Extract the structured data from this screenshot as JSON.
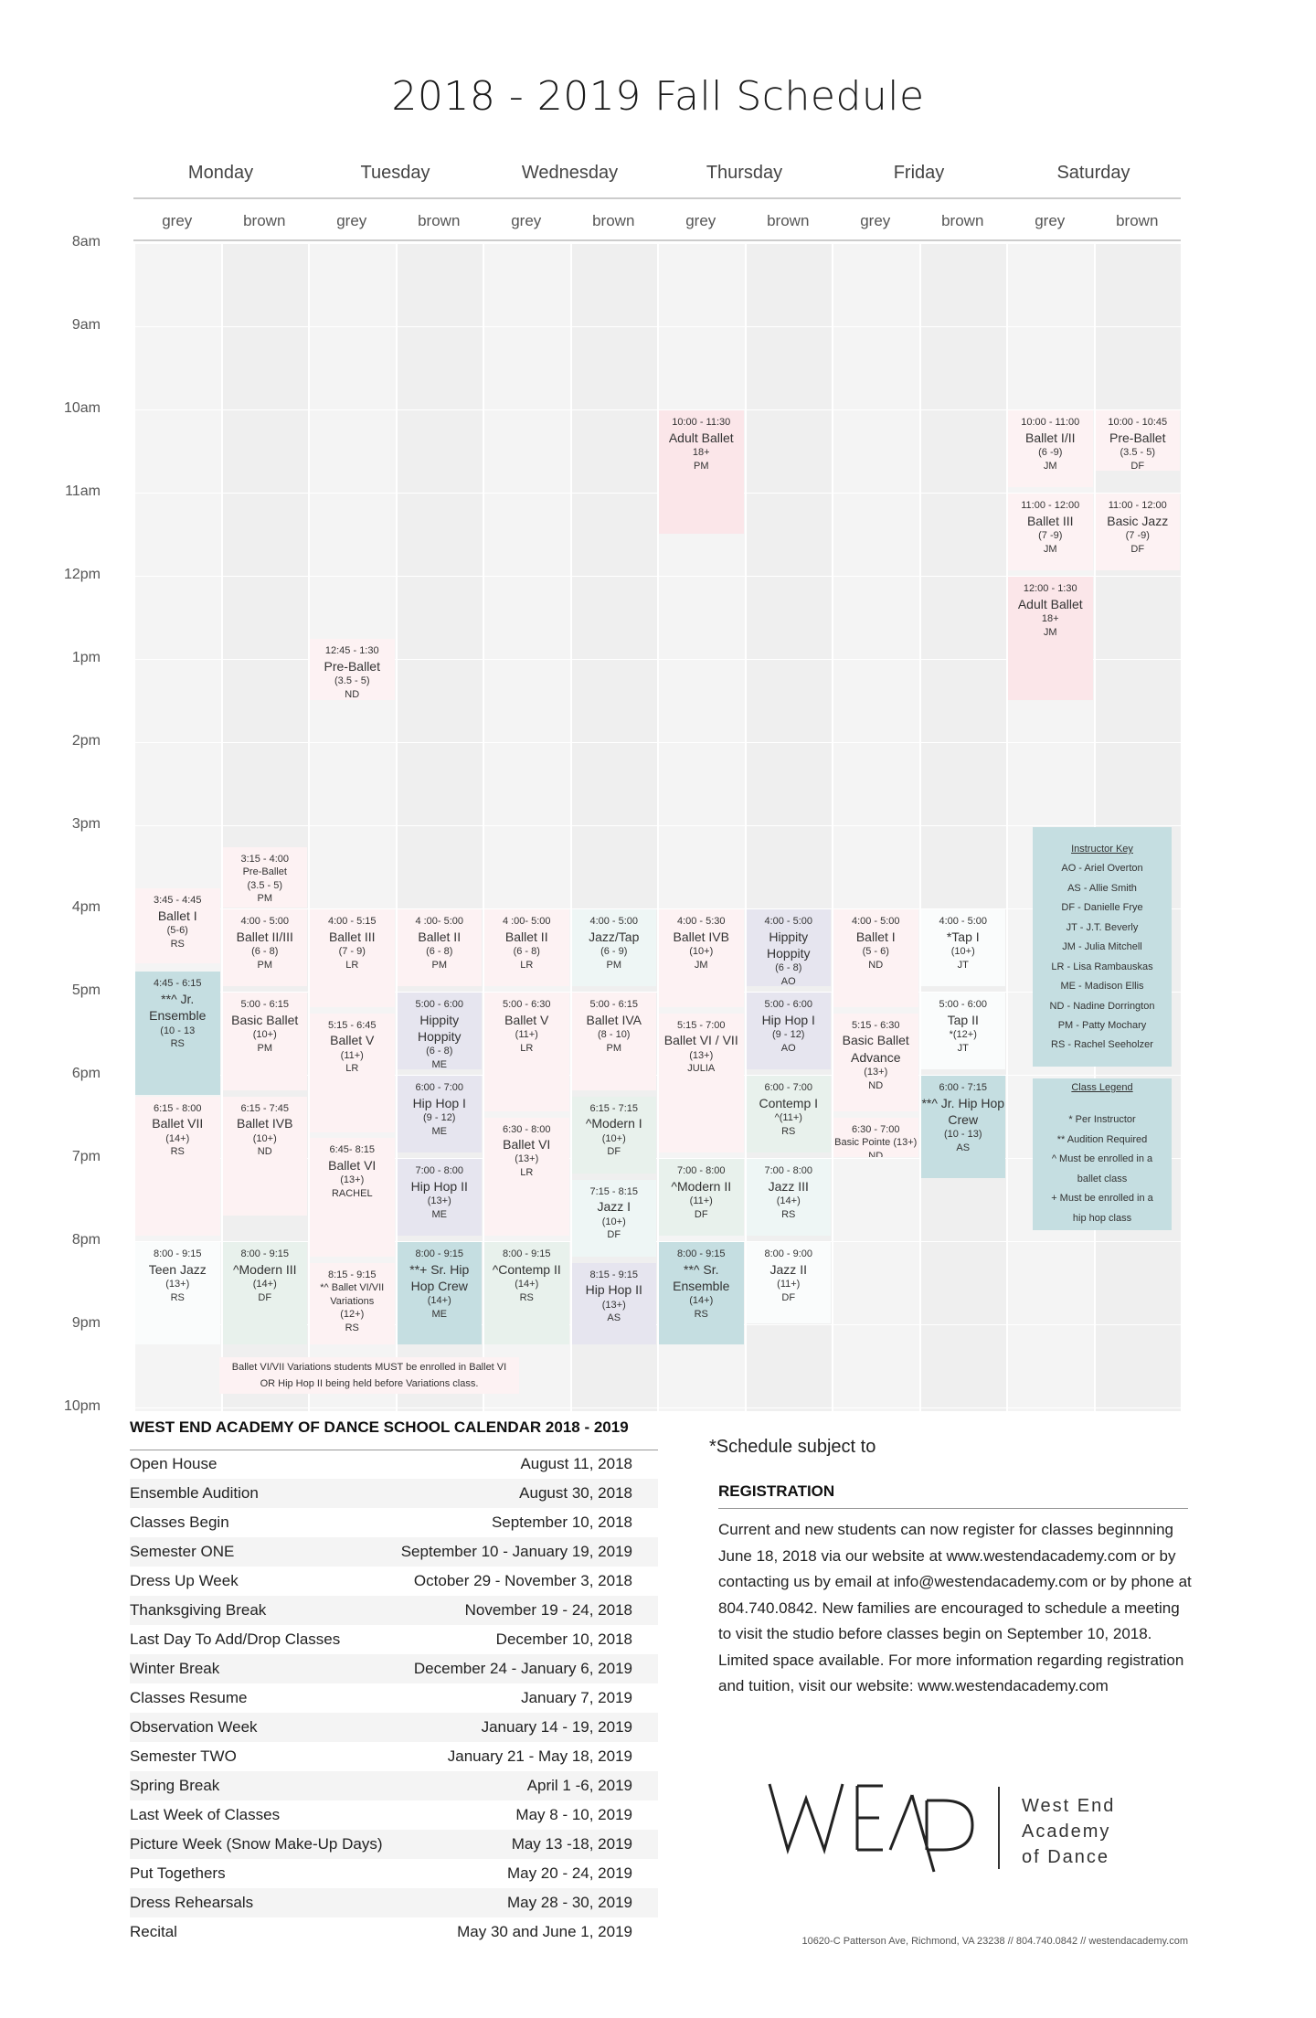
{
  "title": "2018 - 2019 Fall Schedule",
  "days": [
    "Monday",
    "Tuesday",
    "Wednesday",
    "Thursday",
    "Friday",
    "Saturday"
  ],
  "subcols": [
    "grey",
    "brown",
    "grey",
    "brown",
    "grey",
    "brown",
    "grey",
    "brown",
    "grey",
    "brown",
    "grey",
    "brown"
  ],
  "times": [
    "8am",
    "9am",
    "10am",
    "11am",
    "12pm",
    "1pm",
    "2pm",
    "3pm",
    "4pm",
    "5pm",
    "6pm",
    "7pm",
    "8pm",
    "9pm",
    "10pm"
  ],
  "classes": [
    {
      "col": 0,
      "start": 15.75,
      "end": 16.67,
      "color": "lpink",
      "time": "3:45 - 4:45",
      "name": "Ballet I",
      "age": "(5-6)",
      "inst": "RS"
    },
    {
      "col": 0,
      "start": 16.75,
      "end": 18.25,
      "color": "teal",
      "time": "4:45 - 6:15",
      "name": "**^ Jr. Ensemble",
      "age": "(10 - 13",
      "inst": "RS"
    },
    {
      "col": 0,
      "start": 18.25,
      "end": 19.95,
      "color": "lpink",
      "time": "6:15 - 8:00",
      "name": "Ballet VII",
      "age": "(14+)",
      "inst": "RS"
    },
    {
      "col": 0,
      "start": 20.0,
      "end": 21.25,
      "color": "white",
      "time": "8:00 - 9:15",
      "name": "Teen Jazz",
      "age": "(13+)",
      "inst": "RS"
    },
    {
      "col": 1,
      "start": 15.25,
      "end": 16.0,
      "color": "lpink",
      "time": "3:15 - 4:00",
      "name": "Pre-Ballet",
      "age": "(3.5 - 5)",
      "inst": "PM",
      "small": true
    },
    {
      "col": 1,
      "start": 16.0,
      "end": 16.95,
      "color": "lpink",
      "time": "4:00 - 5:00",
      "name": "Ballet II/III",
      "age": "(6 - 8)",
      "inst": "PM"
    },
    {
      "col": 1,
      "start": 17.0,
      "end": 18.2,
      "color": "lpink",
      "time": "5:00 - 6:15",
      "name": "Basic Ballet",
      "age": "(10+)",
      "inst": "PM"
    },
    {
      "col": 1,
      "start": 18.25,
      "end": 19.7,
      "color": "lpink",
      "time": "6:15 - 7:45",
      "name": "Ballet IVB",
      "age": "(10+)",
      "inst": "ND"
    },
    {
      "col": 1,
      "start": 20.0,
      "end": 21.25,
      "color": "mint",
      "time": "8:00 - 9:15",
      "name": "^Modern III",
      "age": "(14+)",
      "inst": "DF"
    },
    {
      "col": 2,
      "start": 12.75,
      "end": 13.5,
      "color": "lpink",
      "time": "12:45 - 1:30",
      "name": "Pre-Ballet",
      "age": "(3.5 - 5)",
      "inst": "ND"
    },
    {
      "col": 2,
      "start": 16.0,
      "end": 17.2,
      "color": "lpink",
      "time": "4:00 - 5:15",
      "name": "Ballet III",
      "age": "(7 - 9)",
      "inst": "LR"
    },
    {
      "col": 2,
      "start": 17.25,
      "end": 18.7,
      "color": "lpink",
      "time": "5:15 - 6:45",
      "name": "Ballet V",
      "age": "(11+)",
      "inst": "LR"
    },
    {
      "col": 2,
      "start": 18.75,
      "end": 20.2,
      "color": "lpink",
      "time": "6:45- 8:15",
      "name": "Ballet VI",
      "age": "(13+)",
      "inst": "RACHEL"
    },
    {
      "col": 2,
      "start": 20.25,
      "end": 21.25,
      "color": "lpink",
      "time": "8:15 - 9:15",
      "name": "*^ Ballet VI/VII Variations",
      "age": "(12+)",
      "inst": "RS",
      "small": true
    },
    {
      "col": 3,
      "start": 16.0,
      "end": 16.95,
      "color": "lpink",
      "time": "4 :00- 5:00",
      "name": "Ballet II",
      "age": "(6 - 8)",
      "inst": "PM"
    },
    {
      "col": 3,
      "start": 17.0,
      "end": 17.95,
      "color": "lav",
      "time": "5:00 - 6:00",
      "name": "Hippity Hoppity",
      "age": "(6 - 8)",
      "inst": "ME"
    },
    {
      "col": 3,
      "start": 18.0,
      "end": 18.95,
      "color": "lav",
      "time": "6:00 - 7:00",
      "name": "Hip Hop I",
      "age": "(9 - 12)",
      "inst": "ME"
    },
    {
      "col": 3,
      "start": 19.0,
      "end": 19.95,
      "color": "lav",
      "time": "7:00 - 8:00",
      "name": "Hip Hop II",
      "age": "(13+)",
      "inst": "ME"
    },
    {
      "col": 3,
      "start": 20.0,
      "end": 21.25,
      "color": "teal",
      "time": "8:00 - 9:15",
      "name": "**+ Sr. Hip Hop Crew",
      "age": "(14+)",
      "inst": "ME"
    },
    {
      "col": 4,
      "start": 16.0,
      "end": 16.95,
      "color": "lpink",
      "time": "4 :00- 5:00",
      "name": "Ballet II",
      "age": "(6 - 8)",
      "inst": "LR"
    },
    {
      "col": 4,
      "start": 17.0,
      "end": 18.45,
      "color": "lpink",
      "time": "5:00 - 6:30",
      "name": "Ballet V",
      "age": "(11+)",
      "inst": "LR"
    },
    {
      "col": 4,
      "start": 18.5,
      "end": 19.95,
      "color": "lpink",
      "time": "6:30 - 8:00",
      "name": "Ballet VI",
      "age": "(13+)",
      "inst": "LR"
    },
    {
      "col": 4,
      "start": 20.0,
      "end": 21.25,
      "color": "mint",
      "time": "8:00 - 9:15",
      "name": "^Contemp II",
      "age": "(14+)",
      "inst": "RS"
    },
    {
      "col": 5,
      "start": 16.0,
      "end": 16.95,
      "color": "lmint",
      "time": "4:00 - 5:00",
      "name": "Jazz/Tap",
      "age": "(6 - 9)",
      "inst": "PM"
    },
    {
      "col": 5,
      "start": 17.0,
      "end": 18.2,
      "color": "lpink",
      "time": "5:00 - 6:15",
      "name": "Ballet IVA",
      "age": "(8 - 10)",
      "inst": "PM"
    },
    {
      "col": 5,
      "start": 18.25,
      "end": 19.2,
      "color": "mint",
      "time": "6:15 - 7:15",
      "name": "^Modern I",
      "age": "(10+)",
      "inst": "DF"
    },
    {
      "col": 5,
      "start": 19.25,
      "end": 20.2,
      "color": "lmint",
      "time": "7:15 - 8:15",
      "name": "Jazz I",
      "age": "(10+)",
      "inst": "DF"
    },
    {
      "col": 5,
      "start": 20.25,
      "end": 21.25,
      "color": "lav",
      "time": "8:15 - 9:15",
      "name": "Hip Hop II",
      "age": "(13+)",
      "inst": "AS"
    },
    {
      "col": 6,
      "start": 10.0,
      "end": 11.5,
      "color": "pink",
      "time": "10:00 - 11:30",
      "name": "Adult Ballet",
      "age": "18+",
      "inst": "PM"
    },
    {
      "col": 6,
      "start": 16.0,
      "end": 17.2,
      "color": "lpink",
      "time": "4:00 - 5:30",
      "name": "Ballet IVB",
      "age": "(10+)",
      "inst": "JM"
    },
    {
      "col": 6,
      "start": 17.25,
      "end": 18.95,
      "color": "lpink",
      "time": "5:15 - 7:00",
      "name": "Ballet VI / VII",
      "age": "(13+)",
      "inst": "JULIA"
    },
    {
      "col": 6,
      "start": 19.0,
      "end": 19.95,
      "color": "mint",
      "time": "7:00 - 8:00",
      "name": "^Modern II",
      "age": "(11+)",
      "inst": "DF"
    },
    {
      "col": 6,
      "start": 20.0,
      "end": 21.25,
      "color": "teal",
      "time": "8:00 - 9:15",
      "name": "**^ Sr. Ensemble",
      "age": "(14+)",
      "inst": "RS"
    },
    {
      "col": 7,
      "start": 16.0,
      "end": 16.95,
      "color": "lav",
      "time": "4:00 - 5:00",
      "name": "Hippity Hoppity",
      "age": "(6 - 8)",
      "inst": "AO"
    },
    {
      "col": 7,
      "start": 17.0,
      "end": 17.95,
      "color": "lav",
      "time": "5:00 - 6:00",
      "name": "Hip Hop I",
      "age": "(9 - 12)",
      "inst": "AO"
    },
    {
      "col": 7,
      "start": 18.0,
      "end": 18.95,
      "color": "mint",
      "time": "6:00 - 7:00",
      "name": "Contemp I",
      "age": "^(11+)",
      "inst": "RS"
    },
    {
      "col": 7,
      "start": 19.0,
      "end": 19.95,
      "color": "lmint",
      "time": "7:00 - 8:00",
      "name": "Jazz III",
      "age": "(14+)",
      "inst": "RS"
    },
    {
      "col": 7,
      "start": 20.0,
      "end": 21.0,
      "color": "white",
      "time": "8:00 - 9:00",
      "name": "Jazz II",
      "age": "(11+)",
      "inst": "DF"
    },
    {
      "col": 8,
      "start": 16.0,
      "end": 17.2,
      "color": "lpink",
      "time": "4:00 - 5:00",
      "name": "Ballet I",
      "age": "(5 - 6)",
      "inst": "ND"
    },
    {
      "col": 8,
      "start": 17.25,
      "end": 18.45,
      "color": "lpink",
      "time": "5:15 - 6:30",
      "name": "Basic Ballet Advance",
      "age": "(13+)",
      "inst": "ND"
    },
    {
      "col": 8,
      "start": 18.5,
      "end": 19.0,
      "color": "lpink",
      "time": "6:30 - 7:00",
      "name": "Basic Pointe (13+)",
      "age": "",
      "inst": "ND",
      "small": true
    },
    {
      "col": 9,
      "start": 16.0,
      "end": 16.95,
      "color": "white",
      "time": "4:00 - 5:00",
      "name": "*Tap I",
      "age": "(10+)",
      "inst": "JT"
    },
    {
      "col": 9,
      "start": 17.0,
      "end": 17.95,
      "color": "white",
      "time": "5:00 - 6:00",
      "name": "Tap II",
      "age": "*(12+)",
      "inst": "JT"
    },
    {
      "col": 9,
      "start": 18.0,
      "end": 19.25,
      "color": "teal",
      "time": "6:00 - 7:15",
      "name": "**^ Jr. Hip Hop Crew",
      "age": "(10 - 13)",
      "inst": "AS"
    },
    {
      "col": 10,
      "start": 10.0,
      "end": 10.95,
      "color": "lpink",
      "time": "10:00 - 11:00",
      "name": "Ballet I/II",
      "age": "(6 -9)",
      "inst": "JM"
    },
    {
      "col": 10,
      "start": 11.0,
      "end": 11.95,
      "color": "lpink",
      "time": "11:00 - 12:00",
      "name": "Ballet III",
      "age": "(7 -9)",
      "inst": "JM"
    },
    {
      "col": 10,
      "start": 12.0,
      "end": 13.5,
      "color": "pink",
      "time": "12:00 - 1:30",
      "name": "Adult Ballet",
      "age": "18+",
      "inst": "JM"
    },
    {
      "col": 11,
      "start": 10.0,
      "end": 10.75,
      "color": "lpink",
      "time": "10:00 - 10:45",
      "name": "Pre-Ballet",
      "age": "(3.5 - 5)",
      "inst": "DF"
    },
    {
      "col": 11,
      "start": 11.0,
      "end": 11.95,
      "color": "lpink",
      "time": "11:00 - 12:00",
      "name": "Basic Jazz",
      "age": "(7 -9)",
      "inst": "DF"
    }
  ],
  "instructor_key": {
    "title": "Instructor Key",
    "items": [
      "AO - Ariel Overton",
      "AS - Allie Smith",
      "DF - Danielle Frye",
      "JT - J.T. Beverly",
      "JM - Julia Mitchell",
      "LR - Lisa Rambauskas",
      "ME - Madison Ellis",
      "ND - Nadine Dorrington",
      "PM - Patty Mochary",
      "RS - Rachel Seeholzer"
    ]
  },
  "class_legend": {
    "title": "Class Legend",
    "items": [
      "* Per Instructor",
      "** Audition Required",
      "^ Must be enrolled in a",
      "ballet class",
      "+ Must be enrolled in a",
      "hip hop class"
    ]
  },
  "variations_note": [
    "Ballet VI/VII Variations students MUST be enrolled in Ballet VI",
    "OR Hip Hop II being held before Variations class."
  ],
  "calendar": {
    "title": "WEST END ACADEMY OF DANCE SCHOOL CALENDAR 2018 - 2019",
    "rows": [
      {
        "event": "Open House",
        "date": "August 11, 2018"
      },
      {
        "event": "Ensemble Audition",
        "date": "August 30, 2018"
      },
      {
        "event": "Classes Begin",
        "date": "September 10, 2018"
      },
      {
        "event": "Semester ONE",
        "date": "September 10 - January 19, 2019"
      },
      {
        "event": "Dress Up Week",
        "date": "October 29 - November 3, 2018"
      },
      {
        "event": "Thanksgiving Break",
        "date": "November 19 - 24, 2018"
      },
      {
        "event": "Last Day To Add/Drop Classes",
        "date": "December 10, 2018"
      },
      {
        "event": "Winter Break",
        "date": "December 24 - January 6, 2019"
      },
      {
        "event": "Classes Resume",
        "date": "January 7, 2019"
      },
      {
        "event": "Observation Week",
        "date": "January 14 - 19, 2019"
      },
      {
        "event": "Semester TWO",
        "date": "January 21 - May 18, 2019"
      },
      {
        "event": "Spring Break",
        "date": "April 1 -6, 2019"
      },
      {
        "event": "Last Week of Classes",
        "date": "May 8 - 10, 2019"
      },
      {
        "event": "Picture Week (Snow Make-Up Days)",
        "date": "May 13 -18, 2019"
      },
      {
        "event": "Put Togethers",
        "date": "May 20 - 24, 2019"
      },
      {
        "event": "Dress Rehearsals",
        "date": "May 28 - 30, 2019"
      },
      {
        "event": "Recital",
        "date": "May 30 and June 1, 2019"
      }
    ]
  },
  "subject_note": "*Schedule subject to",
  "registration": {
    "title": "REGISTRATION",
    "text": "Current and new students can now register for classes beginnning June 18, 2018 via our website at www.westendacademy.com or by contacting us by email at info@westendacademy.com or by phone at 804.740.0842. New families are encouraged to schedule a meeting to visit the studio before classes begin on September 10, 2018. Limited space available. For more information regarding registration and tuition, visit our website: www.westendacademy.com"
  },
  "logo": {
    "mark": "WEAD",
    "lines": [
      "West End",
      "Academy",
      "of Dance"
    ]
  },
  "footer": "10620-C Patterson Ave, Richmond, VA 23238  //  804.740.0842  //  westendacademy.com"
}
